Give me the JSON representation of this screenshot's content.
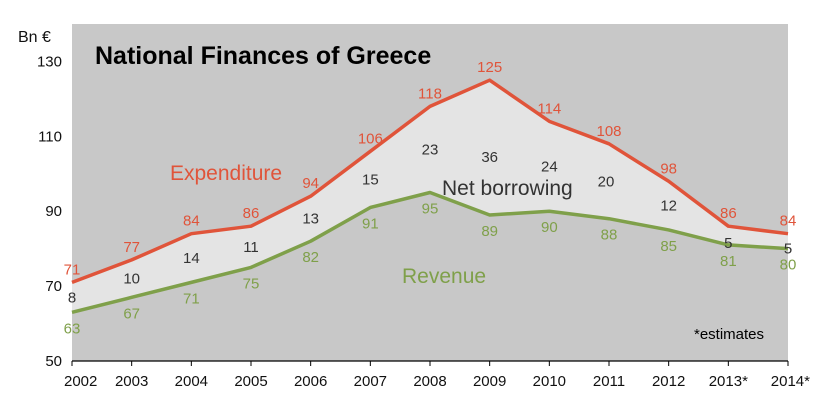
{
  "chart_data": {
    "type": "line",
    "title": "National Finances of Greece",
    "ylabel": "Bn €",
    "ylim": [
      50,
      140
    ],
    "yticks": [
      50,
      70,
      90,
      110,
      130
    ],
    "categories": [
      "2002",
      "2003",
      "2004",
      "2005",
      "2006",
      "2007",
      "2008",
      "2009",
      "2010",
      "2011",
      "2012",
      "2013*",
      "2014*"
    ],
    "series": [
      {
        "name": "Expenditure",
        "color": "#e0543a",
        "values": [
          71,
          77,
          84,
          86,
          94,
          106,
          118,
          125,
          114,
          108,
          98,
          86,
          84
        ]
      },
      {
        "name": "Revenue",
        "color": "#7fa04a",
        "values": [
          63,
          67,
          71,
          75,
          82,
          91,
          95,
          89,
          90,
          88,
          85,
          81,
          80
        ]
      }
    ],
    "difference": {
      "name": "Net borrowing",
      "color": "#333333",
      "values": [
        8,
        10,
        14,
        11,
        13,
        15,
        23,
        36,
        24,
        20,
        12,
        5,
        5
      ]
    },
    "note": "*estimates",
    "grid": false,
    "plot_background": "#c8c8c8",
    "fill_between_color": "#e4e4e4"
  }
}
